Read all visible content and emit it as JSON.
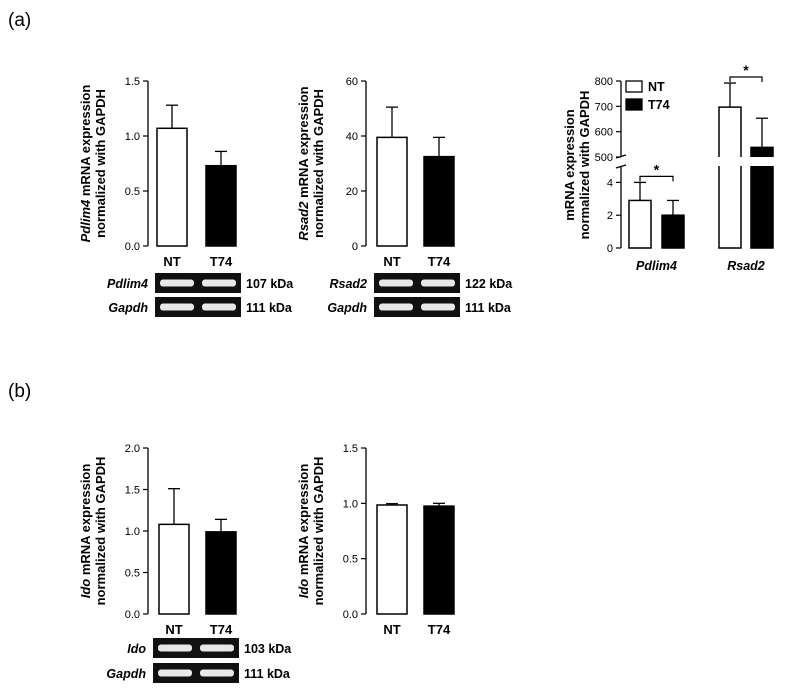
{
  "panels": {
    "a": "(a)",
    "b": "(b)"
  },
  "colors": {
    "nt_fill": "#ffffff",
    "t74_fill": "#000000",
    "axis": "#000000",
    "gel_bg": "#111111",
    "band": "#e8e8e8"
  },
  "chart_data": [
    {
      "id": "pdlim4",
      "type": "bar",
      "ylabel_italic": "Pdlim4",
      "ylabel_rest": " mRNA expression",
      "ylabel_line2": "normalized with GAPDH",
      "categories": [
        "NT",
        "T74"
      ],
      "values": [
        1.07,
        0.73
      ],
      "errors": [
        0.21,
        0.13
      ],
      "ylim": [
        0,
        1.5
      ],
      "yticks": [
        "0.0",
        "0.5",
        "1.0",
        "1.5"
      ],
      "gel": [
        {
          "gene": "Pdlim4",
          "size": "107 kDa"
        },
        {
          "gene": "Gapdh",
          "size": "111 kDa"
        }
      ]
    },
    {
      "id": "rsad2",
      "type": "bar",
      "ylabel_italic": "Rsad2",
      "ylabel_rest": " mRNA expression",
      "ylabel_line2": "normalized with GAPDH",
      "categories": [
        "NT",
        "T74"
      ],
      "values": [
        39.5,
        32.5
      ],
      "errors": [
        11,
        7
      ],
      "ylim": [
        0,
        60
      ],
      "yticks": [
        "0",
        "20",
        "40",
        "60"
      ],
      "gel": [
        {
          "gene": "Rsad2",
          "size": "122 kDa"
        },
        {
          "gene": "Gapdh",
          "size": "111 kDa"
        }
      ]
    },
    {
      "id": "combined",
      "type": "bar",
      "ylabel_line1": "mRNA expression",
      "ylabel_line2": "normalized with GAPDH",
      "categories": [
        "Pdlim4",
        "Rsad2"
      ],
      "series": [
        {
          "name": "NT",
          "values": [
            2.9,
            697
          ],
          "errors": [
            1.1,
            95
          ]
        },
        {
          "name": "T74",
          "values": [
            2.0,
            538
          ],
          "errors": [
            0.9,
            115
          ]
        }
      ],
      "broken_axis": true,
      "ylim_lower": [
        0,
        5
      ],
      "ylim_upper": [
        500,
        800
      ],
      "yticks_lower": [
        "0",
        "2",
        "4"
      ],
      "yticks_upper": [
        "500",
        "600",
        "700",
        "800"
      ],
      "significance": [
        "*",
        "*"
      ],
      "legend": "top-left"
    },
    {
      "id": "ido",
      "type": "bar",
      "ylabel_italic": "Ido",
      "ylabel_rest": " mRNA expression",
      "ylabel_line2": "normalized with GAPDH",
      "categories": [
        "NT",
        "T74"
      ],
      "values": [
        1.08,
        0.99
      ],
      "errors": [
        0.43,
        0.15
      ],
      "ylim": [
        0,
        2.0
      ],
      "yticks": [
        "0.0",
        "0.5",
        "1.0",
        "1.5",
        "2.0"
      ],
      "gel": [
        {
          "gene": "Ido",
          "size": "103 kDa"
        },
        {
          "gene": "Gapdh",
          "size": "111 kDa"
        }
      ]
    },
    {
      "id": "ido2",
      "type": "bar",
      "ylabel_italic": "Ido",
      "ylabel_rest": " mRNA expression",
      "ylabel_line2": "normalized with GAPDH",
      "categories": [
        "NT",
        "T74"
      ],
      "values": [
        0.985,
        0.975
      ],
      "errors": [
        0.012,
        0.025
      ],
      "ylim": [
        0,
        1.5
      ],
      "yticks": [
        "0.0",
        "0.5",
        "1.0",
        "1.5"
      ]
    }
  ]
}
